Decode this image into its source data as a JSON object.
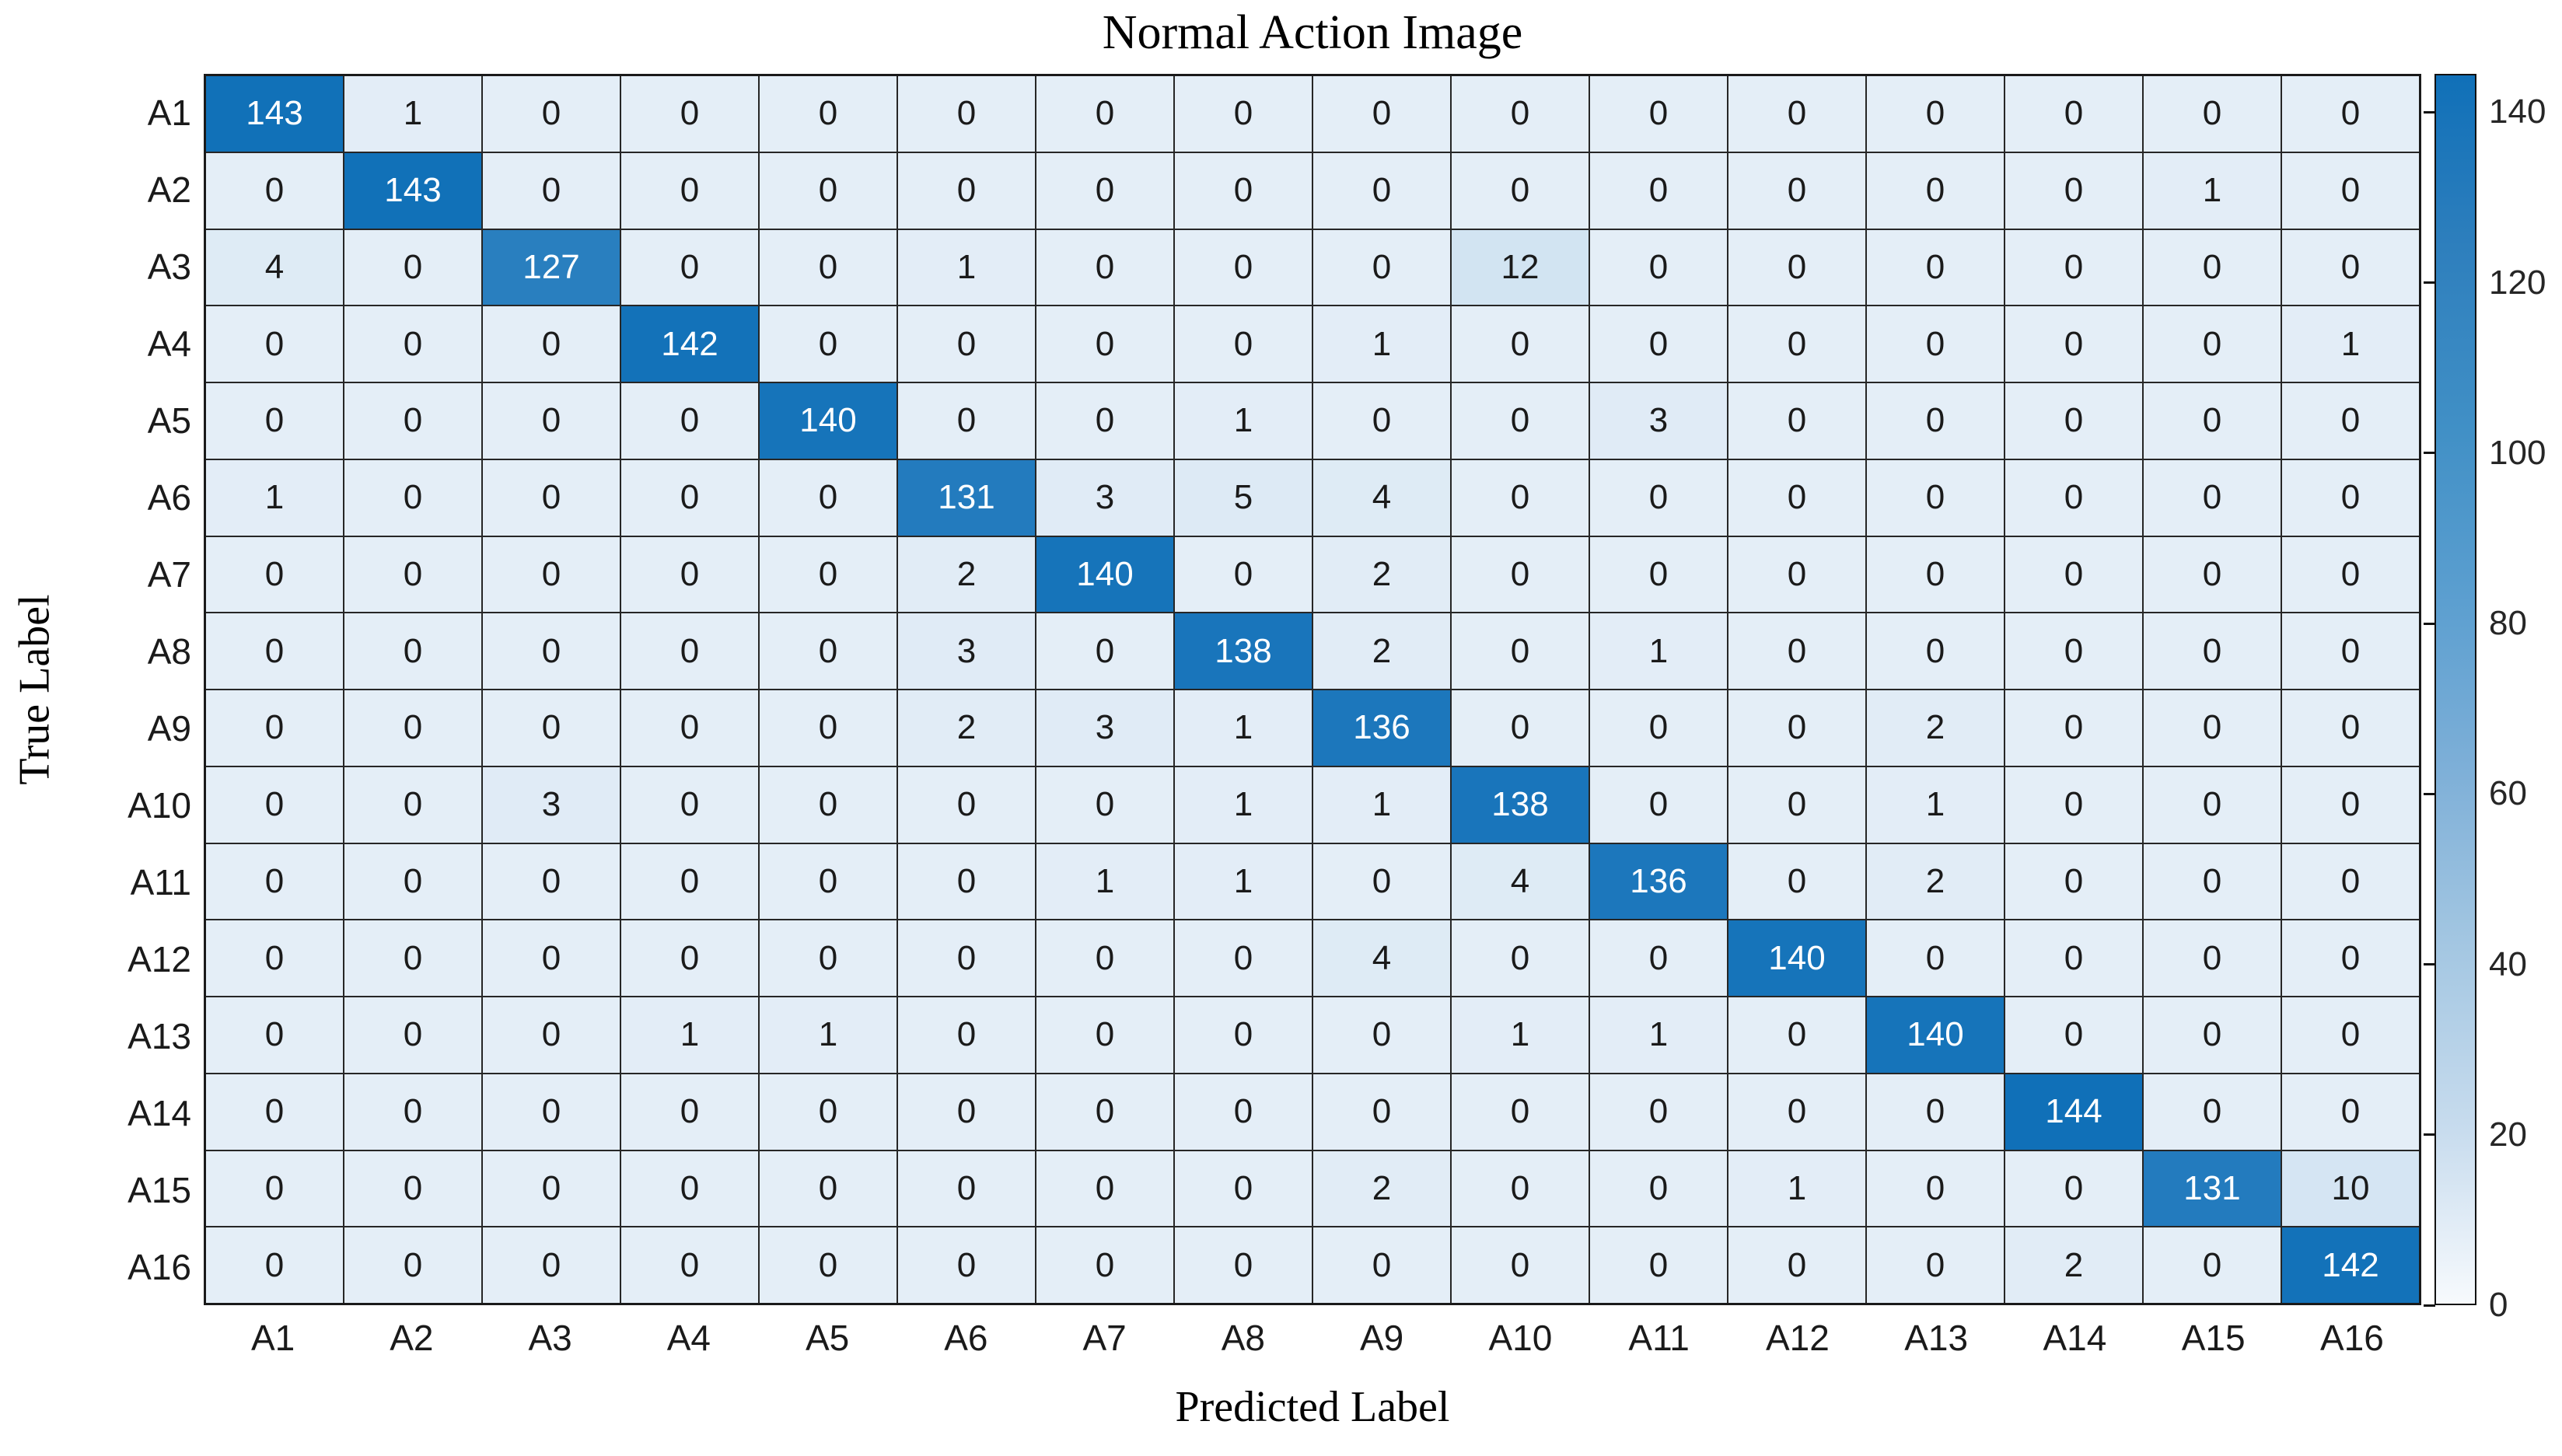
{
  "chart_data": {
    "type": "heatmap",
    "title": "Normal Action Image",
    "xlabel": "Predicted Label",
    "ylabel": "True Label",
    "row_labels": [
      "A1",
      "A2",
      "A3",
      "A4",
      "A5",
      "A6",
      "A7",
      "A8",
      "A9",
      "A10",
      "A11",
      "A12",
      "A13",
      "A14",
      "A15",
      "A16"
    ],
    "col_labels": [
      "A1",
      "A2",
      "A3",
      "A4",
      "A5",
      "A6",
      "A7",
      "A8",
      "A9",
      "A10",
      "A11",
      "A12",
      "A13",
      "A14",
      "A15",
      "A16"
    ],
    "matrix": [
      [
        143,
        1,
        0,
        0,
        0,
        0,
        0,
        0,
        0,
        0,
        0,
        0,
        0,
        0,
        0,
        0
      ],
      [
        0,
        143,
        0,
        0,
        0,
        0,
        0,
        0,
        0,
        0,
        0,
        0,
        0,
        0,
        1,
        0
      ],
      [
        4,
        0,
        127,
        0,
        0,
        1,
        0,
        0,
        0,
        12,
        0,
        0,
        0,
        0,
        0,
        0
      ],
      [
        0,
        0,
        0,
        142,
        0,
        0,
        0,
        0,
        1,
        0,
        0,
        0,
        0,
        0,
        0,
        1
      ],
      [
        0,
        0,
        0,
        0,
        140,
        0,
        0,
        1,
        0,
        0,
        3,
        0,
        0,
        0,
        0,
        0
      ],
      [
        1,
        0,
        0,
        0,
        0,
        131,
        3,
        5,
        4,
        0,
        0,
        0,
        0,
        0,
        0,
        0
      ],
      [
        0,
        0,
        0,
        0,
        0,
        2,
        140,
        0,
        2,
        0,
        0,
        0,
        0,
        0,
        0,
        0
      ],
      [
        0,
        0,
        0,
        0,
        0,
        3,
        0,
        138,
        2,
        0,
        1,
        0,
        0,
        0,
        0,
        0
      ],
      [
        0,
        0,
        0,
        0,
        0,
        2,
        3,
        1,
        136,
        0,
        0,
        0,
        2,
        0,
        0,
        0
      ],
      [
        0,
        0,
        3,
        0,
        0,
        0,
        0,
        1,
        1,
        138,
        0,
        0,
        1,
        0,
        0,
        0
      ],
      [
        0,
        0,
        0,
        0,
        0,
        0,
        1,
        1,
        0,
        4,
        136,
        0,
        2,
        0,
        0,
        0
      ],
      [
        0,
        0,
        0,
        0,
        0,
        0,
        0,
        0,
        4,
        0,
        0,
        140,
        0,
        0,
        0,
        0
      ],
      [
        0,
        0,
        0,
        1,
        1,
        0,
        0,
        0,
        0,
        1,
        1,
        0,
        140,
        0,
        0,
        0
      ],
      [
        0,
        0,
        0,
        0,
        0,
        0,
        0,
        0,
        0,
        0,
        0,
        0,
        0,
        144,
        0,
        0
      ],
      [
        0,
        0,
        0,
        0,
        0,
        0,
        0,
        0,
        2,
        0,
        0,
        1,
        0,
        0,
        131,
        10
      ],
      [
        0,
        0,
        0,
        0,
        0,
        0,
        0,
        0,
        0,
        0,
        0,
        0,
        0,
        2,
        0,
        142
      ]
    ],
    "color_scale": {
      "min": 0,
      "max": 144,
      "low_color": "#e4eef7",
      "high_color": "#1070b8",
      "text_dark": "#1a1a1a",
      "text_light": "#ffffff"
    },
    "colorbar": {
      "position": "right",
      "ticks": [
        0,
        20,
        40,
        60,
        80,
        100,
        120,
        140
      ],
      "axis_top_value": 144.5,
      "gradient_stops_bottom_to_top": [
        "#f7fafd",
        "#c8dcee",
        "#a4c7e2",
        "#7fb0d8",
        "#5c9fd0",
        "#4190c6",
        "#2e7fbd",
        "#1070b8"
      ]
    },
    "grid_on": true,
    "grid_line_color": "#262626",
    "legend": "none"
  }
}
